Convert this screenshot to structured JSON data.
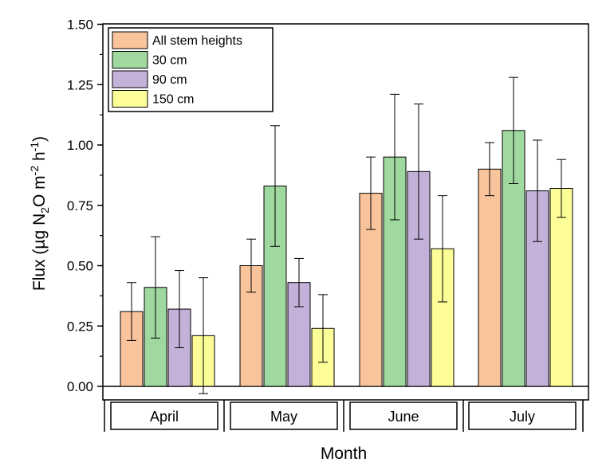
{
  "chart_data": {
    "type": "bar",
    "categories": [
      "April",
      "May",
      "June",
      "July"
    ],
    "series": [
      {
        "name": "All stem heights",
        "color": "#f9c39b",
        "values": [
          0.31,
          0.5,
          0.8,
          0.9
        ],
        "errors": [
          0.12,
          0.11,
          0.15,
          0.11
        ]
      },
      {
        "name": "30 cm",
        "color": "#9fd99f",
        "values": [
          0.41,
          0.83,
          0.95,
          1.06
        ],
        "errors": [
          0.21,
          0.25,
          0.26,
          0.22
        ]
      },
      {
        "name": "90 cm",
        "color": "#c3b1d9",
        "values": [
          0.32,
          0.43,
          0.89,
          0.81
        ],
        "errors": [
          0.16,
          0.1,
          0.28,
          0.21
        ]
      },
      {
        "name": "150 cm",
        "color": "#fdfd98",
        "values": [
          0.21,
          0.24,
          0.57,
          0.82
        ],
        "errors": [
          0.24,
          0.14,
          0.22,
          0.12
        ]
      }
    ],
    "ylim": [
      -0.06,
      1.5
    ],
    "yticks": [
      0.0,
      0.25,
      0.5,
      0.75,
      1.0,
      1.25,
      1.5
    ],
    "ytick_labels": [
      "0.00",
      "0.25",
      "0.50",
      "0.75",
      "1.00",
      "1.25",
      "1.50"
    ],
    "ylabel": {
      "prefix": "Flux (µg N",
      "sub1": "2",
      "mid": "O m",
      "sup1": "-2",
      "mid2": " h",
      "sup2": "-1",
      "suffix": ")"
    },
    "xlabel": "Month",
    "legend_position": "top-left"
  }
}
